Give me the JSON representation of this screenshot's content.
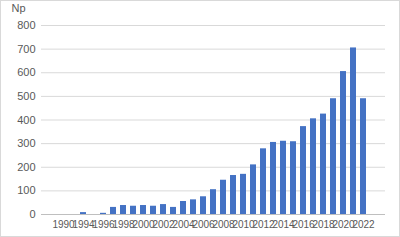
{
  "chart_data": {
    "type": "bar",
    "y_label": "Np",
    "categories": [
      "1990",
      null,
      "1994",
      null,
      "1996",
      null,
      "1998",
      null,
      "2000",
      null,
      "2002",
      null,
      "2004",
      null,
      "2006",
      null,
      "2008",
      null,
      "2010",
      null,
      "2012",
      null,
      "2014",
      null,
      "2016",
      null,
      "2018",
      null,
      "2020",
      null,
      "2022"
    ],
    "values": [
      0,
      0,
      8,
      0,
      5,
      30,
      38,
      35,
      38,
      35,
      42,
      30,
      55,
      62,
      75,
      105,
      145,
      165,
      170,
      210,
      278,
      305,
      310,
      308,
      372,
      405,
      425,
      490,
      605,
      705,
      490
    ],
    "color": "#4472c4",
    "ylim": [
      0,
      800
    ],
    "yticks": [
      0,
      100,
      200,
      300,
      400,
      500,
      600,
      700,
      800
    ],
    "grid": true
  }
}
